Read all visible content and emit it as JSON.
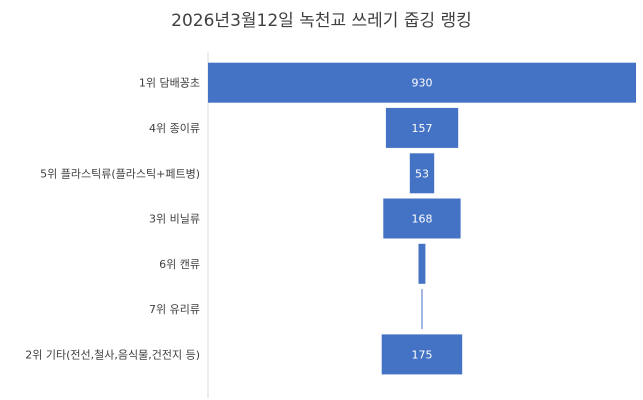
{
  "chart_data": {
    "type": "bar",
    "orientation": "horizontal",
    "layout": "funnel",
    "title": "2026년3월12일 녹천교 쓰레기 줍깅 랭킹",
    "categories": [
      "1위 담배꽁초",
      "4위 종이류",
      "5위 플라스틱류(플라스틱+페트병)",
      "3위 비닐류",
      "6위 캔류",
      "7위 유리류",
      "2위 기타(전선,철사,음식물,건전지 등)"
    ],
    "values": [
      930,
      157,
      53,
      168,
      15,
      2,
      175
    ],
    "data_labels": [
      "930",
      "157",
      "53",
      "168",
      "",
      "",
      "175"
    ],
    "colors": {
      "bar": "#4472C4",
      "axis": "#D9D9D9",
      "text": "#404040"
    },
    "grid": false,
    "legend": "none"
  }
}
